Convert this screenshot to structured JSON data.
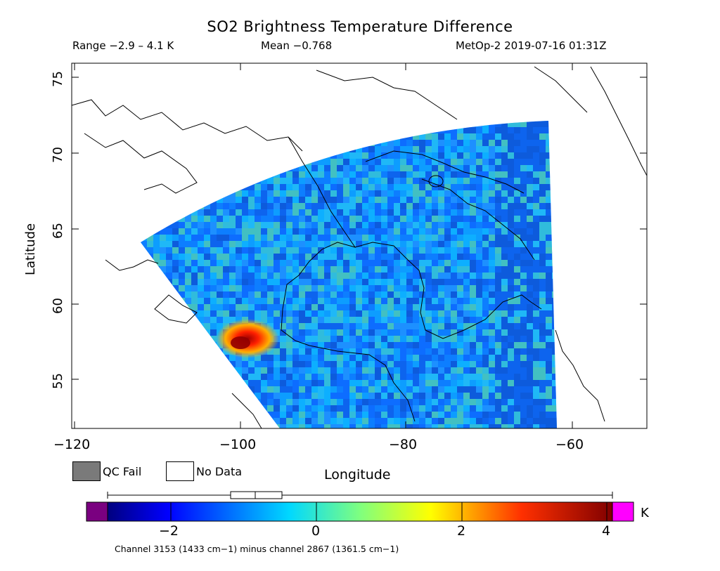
{
  "header": {
    "title": "SO2 Brightness Temperature Difference",
    "range": "Range −2.9 – 4.1 K",
    "mean": "Mean −0.768",
    "satellite": "MetOp-2 2019-07-16 01:31Z"
  },
  "axes": {
    "ylabel": "Latitude",
    "xlabel": "Longitude",
    "xticks": [
      "−120",
      "−100",
      "−80",
      "−60"
    ],
    "yticks": [
      "75",
      "70",
      "65",
      "60",
      "55"
    ]
  },
  "legend": {
    "qc_fail": "QC Fail",
    "no_data": "No Data",
    "qc_color": "#7a7a7a"
  },
  "colorbar": {
    "unit": "K",
    "ticks": [
      "−2",
      "0",
      "2",
      "4"
    ],
    "min": -2.9,
    "max": 4.1,
    "low_color": "#7a0080",
    "high_color": "#ff00ff",
    "footnote": "Channel 3153 (1433 cm−1) minus channel 2867 (1361.5 cm−1)"
  },
  "map_data": {
    "lon_range": [
      -120,
      -50
    ],
    "lat_range": [
      52,
      76
    ],
    "region": "Canadian Arctic / Hudson Bay",
    "hotspot_value_approx": 4.0
  }
}
